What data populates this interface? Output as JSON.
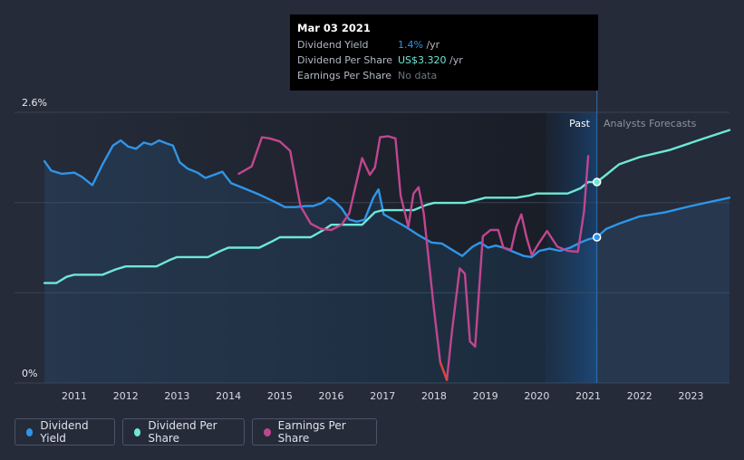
{
  "chart_data": {
    "type": "line",
    "y_axis": {
      "top_label": "2.6%",
      "bottom_label": "0%",
      "ylim": [
        0,
        2.6
      ]
    },
    "x_axis": {
      "xlim": [
        2010.4,
        2023.75
      ],
      "ticks": [
        "2011",
        "2012",
        "2013",
        "2014",
        "2015",
        "2016",
        "2017",
        "2018",
        "2019",
        "2020",
        "2021",
        "2022",
        "2023"
      ]
    },
    "regions": {
      "past_label": "Past",
      "forecast_label": "Analysts Forecasts",
      "split_x": 2021.17,
      "highlight_start": 2020.17
    },
    "series": [
      {
        "name": "Dividend Yield",
        "color": "#2f95e8",
        "area": true,
        "points": [
          [
            2010.42,
            2.13
          ],
          [
            2010.55,
            2.04
          ],
          [
            2010.75,
            2.01
          ],
          [
            2011.0,
            2.02
          ],
          [
            2011.15,
            1.98
          ],
          [
            2011.35,
            1.9
          ],
          [
            2011.55,
            2.1
          ],
          [
            2011.75,
            2.28
          ],
          [
            2011.9,
            2.33
          ],
          [
            2012.05,
            2.27
          ],
          [
            2012.2,
            2.25
          ],
          [
            2012.35,
            2.31
          ],
          [
            2012.5,
            2.29
          ],
          [
            2012.65,
            2.33
          ],
          [
            2012.8,
            2.3
          ],
          [
            2012.92,
            2.28
          ],
          [
            2013.05,
            2.12
          ],
          [
            2013.2,
            2.06
          ],
          [
            2013.4,
            2.02
          ],
          [
            2013.55,
            1.97
          ],
          [
            2013.72,
            2.0
          ],
          [
            2013.88,
            2.03
          ],
          [
            2014.05,
            1.92
          ],
          [
            2014.3,
            1.87
          ],
          [
            2014.6,
            1.81
          ],
          [
            2014.9,
            1.74
          ],
          [
            2015.1,
            1.69
          ],
          [
            2015.3,
            1.69
          ],
          [
            2015.5,
            1.7
          ],
          [
            2015.65,
            1.7
          ],
          [
            2015.82,
            1.73
          ],
          [
            2015.95,
            1.78
          ],
          [
            2016.05,
            1.75
          ],
          [
            2016.2,
            1.68
          ],
          [
            2016.35,
            1.57
          ],
          [
            2016.5,
            1.55
          ],
          [
            2016.65,
            1.57
          ],
          [
            2016.82,
            1.78
          ],
          [
            2016.92,
            1.86
          ],
          [
            2017.02,
            1.62
          ],
          [
            2017.2,
            1.57
          ],
          [
            2017.45,
            1.5
          ],
          [
            2017.7,
            1.42
          ],
          [
            2017.95,
            1.35
          ],
          [
            2018.15,
            1.34
          ],
          [
            2018.35,
            1.28
          ],
          [
            2018.55,
            1.22
          ],
          [
            2018.75,
            1.31
          ],
          [
            2018.9,
            1.35
          ],
          [
            2019.05,
            1.3
          ],
          [
            2019.2,
            1.32
          ],
          [
            2019.35,
            1.3
          ],
          [
            2019.55,
            1.26
          ],
          [
            2019.75,
            1.22
          ],
          [
            2019.9,
            1.21
          ],
          [
            2020.05,
            1.27
          ],
          [
            2020.25,
            1.29
          ],
          [
            2020.45,
            1.27
          ],
          [
            2020.65,
            1.3
          ],
          [
            2020.85,
            1.35
          ],
          [
            2021.0,
            1.38
          ],
          [
            2021.17,
            1.4
          ],
          [
            2021.35,
            1.48
          ],
          [
            2021.6,
            1.53
          ],
          [
            2022.0,
            1.6
          ],
          [
            2022.5,
            1.64
          ],
          [
            2023.0,
            1.7
          ],
          [
            2023.75,
            1.78
          ]
        ]
      },
      {
        "name": "Dividend Per Share",
        "color": "#6ee8d6",
        "points": [
          [
            2010.42,
            0.96
          ],
          [
            2010.65,
            0.96
          ],
          [
            2010.85,
            1.02
          ],
          [
            2011.0,
            1.04
          ],
          [
            2011.3,
            1.04
          ],
          [
            2011.55,
            1.04
          ],
          [
            2011.8,
            1.09
          ],
          [
            2012.0,
            1.12
          ],
          [
            2012.3,
            1.12
          ],
          [
            2012.6,
            1.12
          ],
          [
            2012.85,
            1.18
          ],
          [
            2013.0,
            1.21
          ],
          [
            2013.3,
            1.21
          ],
          [
            2013.6,
            1.21
          ],
          [
            2013.85,
            1.27
          ],
          [
            2014.0,
            1.3
          ],
          [
            2014.3,
            1.3
          ],
          [
            2014.6,
            1.3
          ],
          [
            2014.85,
            1.36
          ],
          [
            2015.0,
            1.4
          ],
          [
            2015.3,
            1.4
          ],
          [
            2015.6,
            1.4
          ],
          [
            2015.85,
            1.47
          ],
          [
            2016.0,
            1.52
          ],
          [
            2016.3,
            1.52
          ],
          [
            2016.6,
            1.52
          ],
          [
            2016.85,
            1.64
          ],
          [
            2017.0,
            1.66
          ],
          [
            2017.3,
            1.66
          ],
          [
            2017.6,
            1.66
          ],
          [
            2017.85,
            1.71
          ],
          [
            2018.0,
            1.73
          ],
          [
            2018.3,
            1.73
          ],
          [
            2018.6,
            1.73
          ],
          [
            2018.85,
            1.76
          ],
          [
            2019.0,
            1.78
          ],
          [
            2019.3,
            1.78
          ],
          [
            2019.6,
            1.78
          ],
          [
            2019.85,
            1.8
          ],
          [
            2020.0,
            1.82
          ],
          [
            2020.3,
            1.82
          ],
          [
            2020.6,
            1.82
          ],
          [
            2020.85,
            1.87
          ],
          [
            2021.0,
            1.93
          ],
          [
            2021.17,
            1.93
          ],
          [
            2021.35,
            2.0
          ],
          [
            2021.6,
            2.1
          ],
          [
            2022.0,
            2.17
          ],
          [
            2022.6,
            2.24
          ],
          [
            2023.2,
            2.34
          ],
          [
            2023.75,
            2.43
          ]
        ]
      },
      {
        "name": "Earnings Per Share",
        "color": "#c0468f",
        "points": [
          [
            2014.2,
            2.01
          ],
          [
            2014.45,
            2.08
          ],
          [
            2014.65,
            2.36
          ],
          [
            2014.8,
            2.35
          ],
          [
            2015.0,
            2.32
          ],
          [
            2015.2,
            2.23
          ],
          [
            2015.4,
            1.7
          ],
          [
            2015.6,
            1.53
          ],
          [
            2015.8,
            1.48
          ],
          [
            2016.0,
            1.47
          ],
          [
            2016.2,
            1.52
          ],
          [
            2016.35,
            1.63
          ],
          [
            2016.5,
            1.95
          ],
          [
            2016.6,
            2.16
          ],
          [
            2016.75,
            2.0
          ],
          [
            2016.85,
            2.07
          ],
          [
            2016.95,
            2.36
          ],
          [
            2017.1,
            2.37
          ],
          [
            2017.25,
            2.35
          ],
          [
            2017.35,
            1.8
          ],
          [
            2017.5,
            1.5
          ],
          [
            2017.6,
            1.82
          ],
          [
            2017.7,
            1.88
          ],
          [
            2017.8,
            1.63
          ],
          [
            2018.0,
            0.7
          ],
          [
            2018.12,
            0.2
          ],
          [
            2018.25,
            0.03
          ],
          [
            2018.35,
            0.5
          ],
          [
            2018.5,
            1.1
          ],
          [
            2018.6,
            1.05
          ],
          [
            2018.7,
            0.4
          ],
          [
            2018.8,
            0.35
          ],
          [
            2018.95,
            1.41
          ],
          [
            2019.1,
            1.47
          ],
          [
            2019.25,
            1.47
          ],
          [
            2019.35,
            1.3
          ],
          [
            2019.5,
            1.28
          ],
          [
            2019.6,
            1.5
          ],
          [
            2019.7,
            1.62
          ],
          [
            2019.8,
            1.4
          ],
          [
            2019.9,
            1.23
          ],
          [
            2020.05,
            1.35
          ],
          [
            2020.2,
            1.46
          ],
          [
            2020.4,
            1.31
          ],
          [
            2020.6,
            1.27
          ],
          [
            2020.8,
            1.26
          ],
          [
            2020.92,
            1.65
          ],
          [
            2021.0,
            2.18
          ]
        ]
      }
    ],
    "markers": [
      {
        "series": "Dividend Per Share",
        "x": 2021.17,
        "y": 1.93
      },
      {
        "series": "Dividend Yield",
        "x": 2021.17,
        "y": 1.4
      }
    ]
  },
  "tooltip": {
    "date": "Mar 03 2021",
    "rows": [
      {
        "label": "Dividend Yield",
        "value": "1.4%",
        "unit": " /yr"
      },
      {
        "label": "Dividend Per Share",
        "value": "US$3.320",
        "unit": " /yr"
      },
      {
        "label": "Earnings Per Share",
        "value": "No data"
      }
    ]
  },
  "legend": [
    {
      "label": "Dividend Yield",
      "color": "#2f95e8"
    },
    {
      "label": "Dividend Per Share",
      "color": "#6ee8d6"
    },
    {
      "label": "Earnings Per Share",
      "color": "#c0468f"
    }
  ]
}
